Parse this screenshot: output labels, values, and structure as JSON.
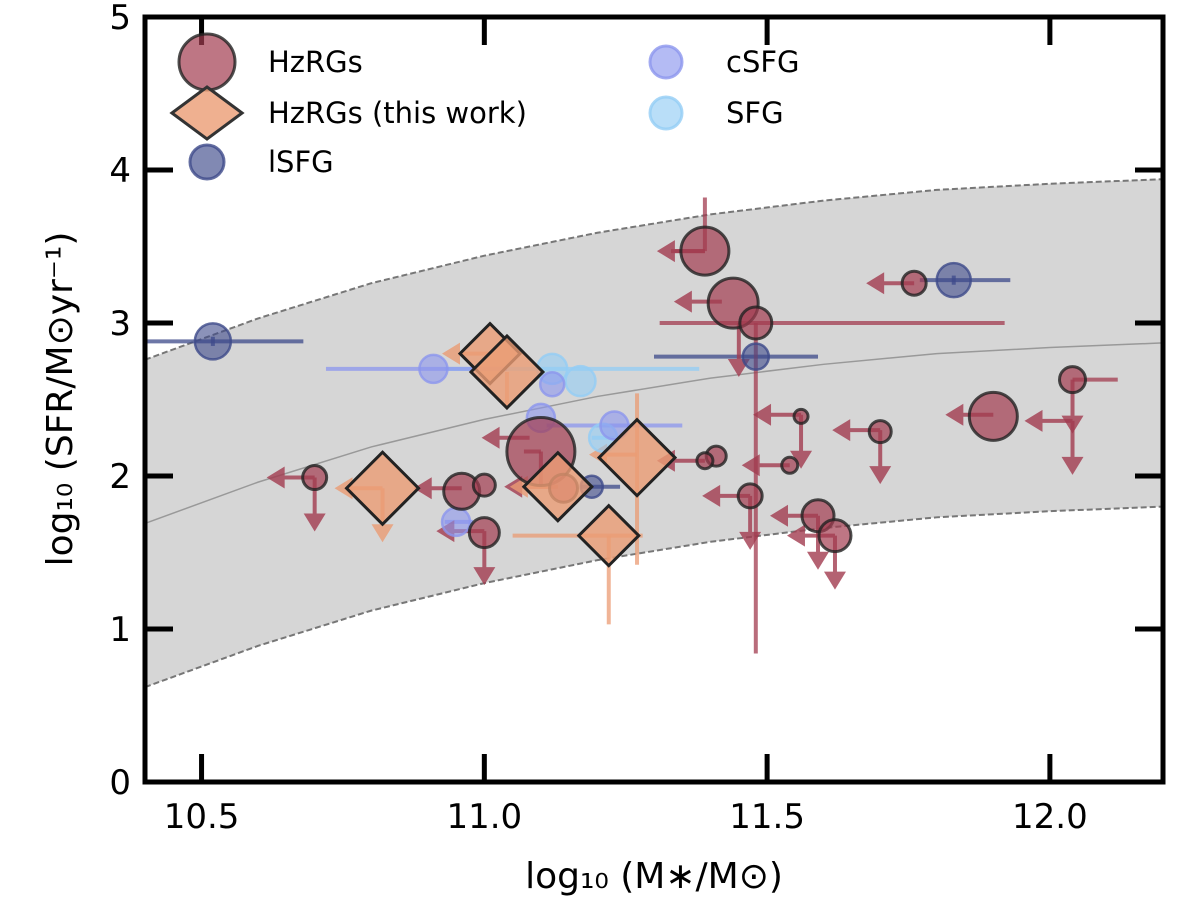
{
  "chart_data": {
    "type": "scatter",
    "xlabel": "log₁₀ (M∗/M⊙)",
    "ylabel": "log₁₀ (SFR/M⊙yr⁻¹)",
    "xlim": [
      10.4,
      12.2
    ],
    "ylim": [
      0,
      5
    ],
    "xticks": [
      10.5,
      11.0,
      11.5,
      12.0
    ],
    "xtick_labels": [
      "10.5",
      "11.0",
      "11.5",
      "12.0"
    ],
    "yticks": [
      0,
      1,
      2,
      3,
      4,
      5
    ],
    "ytick_labels": [
      "0",
      "1",
      "2",
      "3",
      "4",
      "5"
    ],
    "main_sequence_band": {
      "x": [
        10.4,
        10.6,
        10.8,
        11.0,
        11.2,
        11.4,
        11.6,
        11.8,
        12.0,
        12.2
      ],
      "center": [
        1.69,
        1.96,
        2.19,
        2.37,
        2.52,
        2.64,
        2.73,
        2.8,
        2.84,
        2.87
      ],
      "upper": [
        2.76,
        3.03,
        3.26,
        3.44,
        3.59,
        3.71,
        3.8,
        3.87,
        3.91,
        3.94
      ],
      "lower": [
        0.62,
        0.89,
        1.12,
        1.3,
        1.45,
        1.57,
        1.66,
        1.73,
        1.77,
        1.8
      ]
    },
    "legend": [
      {
        "label": "HzRGs",
        "marker": "circle",
        "color": "#a23c50"
      },
      {
        "label": "HzRGs (this work)",
        "marker": "diamond",
        "color": "#eb9c74"
      },
      {
        "label": "lSFG",
        "marker": "circle",
        "color": "#3d4a8a"
      },
      {
        "label": "cSFG",
        "marker": "circle",
        "color": "#8c96ee"
      },
      {
        "label": "SFG",
        "marker": "circle",
        "color": "#93cdf5"
      }
    ],
    "series": [
      {
        "name": "SFG",
        "color": "#93cdf5",
        "points": [
          {
            "x": 11.12,
            "y": 2.7,
            "r": 15,
            "xerr": [
              0.19,
              0.26
            ]
          },
          {
            "x": 11.17,
            "y": 2.62,
            "r": 15
          },
          {
            "x": 11.21,
            "y": 2.25,
            "r": 14,
            "xerr": [
              0.02,
              0.02
            ]
          }
        ]
      },
      {
        "name": "cSFG",
        "color": "#8c96ee",
        "points": [
          {
            "x": 10.91,
            "y": 2.7,
            "r": 14,
            "xerr": [
              0.19,
              0.13
            ]
          },
          {
            "x": 11.12,
            "y": 2.6,
            "r": 12
          },
          {
            "x": 11.1,
            "y": 2.38,
            "r": 14
          },
          {
            "x": 11.23,
            "y": 2.33,
            "r": 14,
            "xerr": [
              0.12,
              0.12
            ]
          },
          {
            "x": 10.95,
            "y": 1.7,
            "r": 14,
            "xerr": [
              0.02,
              0.03
            ]
          }
        ]
      },
      {
        "name": "lSFG",
        "color": "#3d4a8a",
        "points": [
          {
            "x": 10.52,
            "y": 2.88,
            "r": 18,
            "xerr": [
              0.12,
              0.16
            ],
            "yerr": [
              0.03,
              0.03
            ]
          },
          {
            "x": 11.83,
            "y": 3.28,
            "r": 17,
            "xerr": [
              0.06,
              0.1
            ],
            "yerr": [
              0.03,
              0.03
            ]
          },
          {
            "x": 11.48,
            "y": 2.78,
            "r": 13,
            "xerr": [
              0.18,
              0.11
            ]
          },
          {
            "x": 11.19,
            "y": 1.93,
            "r": 11,
            "xerr": [
              0.02,
              0.05
            ]
          }
        ]
      },
      {
        "name": "HzRGs",
        "color": "#a23c50",
        "points": [
          {
            "x": 11.39,
            "y": 3.47,
            "r": 24,
            "xerr": [
              0.06,
              0.0
            ],
            "yerr": [
              0.0,
              0.35
            ]
          },
          {
            "x": 11.44,
            "y": 3.13,
            "r": 25
          },
          {
            "x": 11.48,
            "y": 3.0,
            "r": 16,
            "xerr": [
              0.17,
              0.44
            ],
            "yerr": [
              2.16,
              0.0
            ]
          },
          {
            "x": 11.76,
            "y": 3.26,
            "r": 12
          },
          {
            "x": 11.9,
            "y": 2.39,
            "r": 24
          },
          {
            "x": 12.04,
            "y": 2.63,
            "r": 13,
            "xerr": [
              0.0,
              0.08
            ]
          },
          {
            "x": 11.1,
            "y": 2.16,
            "r": 34,
            "xerr": [
              0.03,
              0.0
            ],
            "yerr": [
              0.24,
              0.0
            ]
          },
          {
            "x": 10.96,
            "y": 1.9,
            "r": 18
          },
          {
            "x": 11.0,
            "y": 1.94,
            "r": 11
          },
          {
            "x": 11.0,
            "y": 1.63,
            "r": 15
          },
          {
            "x": 10.7,
            "y": 1.99,
            "r": 12
          },
          {
            "x": 11.41,
            "y": 2.13,
            "r": 10
          },
          {
            "x": 11.39,
            "y": 2.1,
            "r": 8
          },
          {
            "x": 11.47,
            "y": 1.87,
            "r": 12
          },
          {
            "x": 11.59,
            "y": 1.74,
            "r": 16
          },
          {
            "x": 11.62,
            "y": 1.61,
            "r": 16
          },
          {
            "x": 11.56,
            "y": 2.39,
            "r": 7
          },
          {
            "x": 11.7,
            "y": 2.29,
            "r": 11
          },
          {
            "x": 11.54,
            "y": 2.07,
            "r": 8
          },
          {
            "x": 11.14,
            "y": 1.92,
            "r": 14
          }
        ]
      },
      {
        "name": "HzRGs (this work)",
        "color": "#eb9c74",
        "points": [
          {
            "x": 11.01,
            "y": 2.8,
            "r": 30
          },
          {
            "x": 11.04,
            "y": 2.68,
            "r": 36,
            "xerr": [
              0.0,
              0.0
            ],
            "yerr": [
              0.22,
              0.0
            ]
          },
          {
            "x": 10.82,
            "y": 1.92,
            "r": 36
          },
          {
            "x": 11.13,
            "y": 1.93,
            "r": 34
          },
          {
            "x": 11.27,
            "y": 2.12,
            "r": 38,
            "xerr": [
              0.0,
              0.0
            ],
            "yerr": [
              0.7,
              0.42
            ]
          },
          {
            "x": 11.22,
            "y": 1.61,
            "r": 30,
            "xerr": [
              0.17,
              0.06
            ],
            "yerr": [
              0.58,
              0.0
            ]
          }
        ]
      }
    ],
    "upper_limits": [
      {
        "name": "HzRGs",
        "color": "#a23c50",
        "x": 11.39,
        "y": 3.47,
        "left": true
      },
      {
        "name": "HzRGs",
        "color": "#a23c50",
        "x": 11.42,
        "y": 3.14,
        "left": true
      },
      {
        "name": "HzRGs",
        "color": "#a23c50",
        "x": 11.45,
        "y": 3.0,
        "down": true
      },
      {
        "name": "HzRGs",
        "color": "#a23c50",
        "x": 11.76,
        "y": 3.26,
        "left": true
      },
      {
        "name": "HzRGs",
        "color": "#a23c50",
        "x": 11.9,
        "y": 2.4,
        "left": true
      },
      {
        "name": "HzRGs",
        "color": "#a23c50",
        "x": 12.04,
        "y": 2.63,
        "down": true
      },
      {
        "name": "HzRGs",
        "color": "#a23c50",
        "x": 12.04,
        "y": 2.36,
        "left": true,
        "down": true
      },
      {
        "name": "HzRGs",
        "color": "#a23c50",
        "x": 11.56,
        "y": 2.4,
        "left": true,
        "down": true
      },
      {
        "name": "HzRGs",
        "color": "#a23c50",
        "x": 11.7,
        "y": 2.3,
        "left": true,
        "down": true
      },
      {
        "name": "HzRGs",
        "color": "#a23c50",
        "x": 11.54,
        "y": 2.07,
        "left": true
      },
      {
        "name": "HzRGs",
        "color": "#a23c50",
        "x": 11.39,
        "y": 2.1,
        "left": true
      },
      {
        "name": "HzRGs",
        "color": "#a23c50",
        "x": 11.47,
        "y": 1.87,
        "left": true,
        "down": true
      },
      {
        "name": "HzRGs",
        "color": "#a23c50",
        "x": 11.59,
        "y": 1.74,
        "left": true,
        "down": true
      },
      {
        "name": "HzRGs",
        "color": "#a23c50",
        "x": 11.62,
        "y": 1.61,
        "left": true,
        "down": true
      },
      {
        "name": "HzRGs",
        "color": "#a23c50",
        "x": 11.08,
        "y": 2.25,
        "left": true
      },
      {
        "name": "HzRGs",
        "color": "#a23c50",
        "x": 11.0,
        "y": 1.64,
        "left": true,
        "down": true
      },
      {
        "name": "HzRGs",
        "color": "#a23c50",
        "x": 10.96,
        "y": 1.92,
        "left": true
      },
      {
        "name": "HzRGs",
        "color": "#a23c50",
        "x": 10.7,
        "y": 1.99,
        "left": true,
        "down": true
      },
      {
        "name": "HzRGs",
        "color": "#a23c50",
        "x": 11.12,
        "y": 1.93,
        "left": true
      },
      {
        "name": "HzRGs (this work)",
        "color": "#eb9c74",
        "x": 11.01,
        "y": 2.8,
        "left": true
      },
      {
        "name": "HzRGs (this work)",
        "color": "#eb9c74",
        "x": 10.82,
        "y": 1.92,
        "left": true,
        "down": true
      },
      {
        "name": "HzRGs (this work)",
        "color": "#eb9c74",
        "x": 11.13,
        "y": 1.93,
        "left": true
      },
      {
        "name": "HzRGs (this work)",
        "color": "#eb9c74",
        "x": 11.27,
        "y": 2.14,
        "left": true
      }
    ]
  }
}
